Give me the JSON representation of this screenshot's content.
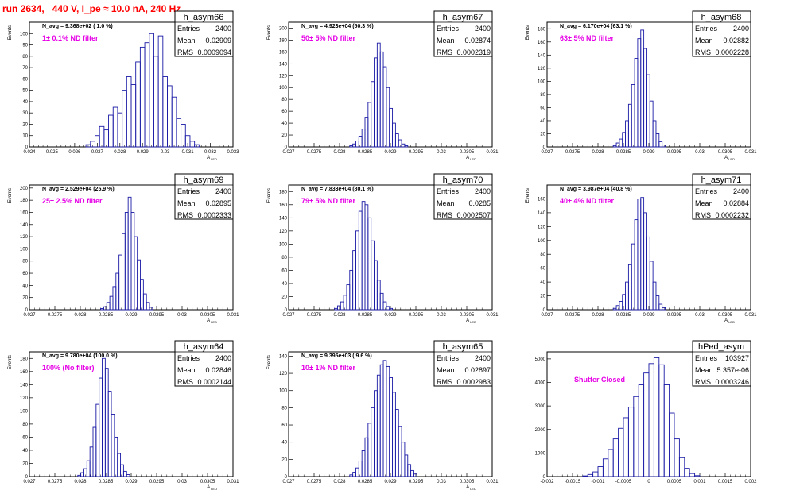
{
  "page": {
    "title": "run 2634,   440 V, I_pe ≈ 10.0 nA, 240 Hz"
  },
  "chart_data": [
    {
      "type": "histogram",
      "name": "h_asym66",
      "n_avg": "N_avg = 9.368e+02 ( 1.0 %)",
      "filter": "1± 0.1% ND filter",
      "ylabel": "Events",
      "xlabel": "A_{LED}",
      "xlim": [
        0.024,
        0.033
      ],
      "ylim": [
        0,
        110
      ],
      "xticks": [
        "0.024",
        "0.025",
        "0.026",
        "0.027",
        "0.028",
        "0.029",
        "0.03",
        "0.031",
        "0.032",
        "0.033"
      ],
      "yticks": [
        "0",
        "10",
        "20",
        "30",
        "40",
        "50",
        "60",
        "70",
        "80",
        "90",
        "100"
      ],
      "stats": {
        "entries": "2400",
        "mean": "0.02909",
        "rms": "0.0009094"
      },
      "bins": [
        [
          0.0265,
          0.0267,
          2
        ],
        [
          0.0267,
          0.0269,
          5
        ],
        [
          0.0269,
          0.0271,
          10
        ],
        [
          0.0271,
          0.0273,
          18
        ],
        [
          0.0273,
          0.0275,
          15
        ],
        [
          0.0275,
          0.0277,
          28
        ],
        [
          0.0277,
          0.0279,
          35
        ],
        [
          0.0279,
          0.0281,
          30
        ],
        [
          0.0281,
          0.0283,
          50
        ],
        [
          0.0283,
          0.0285,
          62
        ],
        [
          0.0285,
          0.0287,
          55
        ],
        [
          0.0287,
          0.0289,
          75
        ],
        [
          0.0289,
          0.0291,
          88
        ],
        [
          0.0291,
          0.0293,
          92
        ],
        [
          0.0293,
          0.0295,
          100
        ],
        [
          0.0295,
          0.0297,
          80
        ],
        [
          0.0297,
          0.0299,
          98
        ],
        [
          0.0299,
          0.0301,
          62
        ],
        [
          0.0301,
          0.0303,
          54
        ],
        [
          0.0303,
          0.0305,
          44
        ],
        [
          0.0305,
          0.0307,
          25
        ],
        [
          0.0307,
          0.0309,
          20
        ],
        [
          0.0309,
          0.0311,
          10
        ],
        [
          0.0311,
          0.0313,
          5
        ],
        [
          0.0313,
          0.0315,
          2
        ]
      ]
    },
    {
      "type": "histogram",
      "name": "h_asym67",
      "n_avg": "N_avg = 4.923e+04 (50.3 %)",
      "filter": "50± 5% ND filter",
      "ylabel": "Events",
      "xlabel": "A_{LED}",
      "xlim": [
        0.027,
        0.031
      ],
      "ylim": [
        0,
        210
      ],
      "xticks": [
        "0.027",
        "0.0275",
        "0.028",
        "0.0285",
        "0.029",
        "0.0295",
        "0.03",
        "0.0305",
        "0.031"
      ],
      "yticks": [
        "0",
        "20",
        "40",
        "60",
        "80",
        "100",
        "120",
        "140",
        "160",
        "180",
        "200"
      ],
      "stats": {
        "entries": "2400",
        "mean": "0.02874",
        "rms": "0.0002319"
      },
      "bins": [
        [
          0.0282,
          0.02826,
          2
        ],
        [
          0.02826,
          0.02832,
          5
        ],
        [
          0.02832,
          0.02838,
          10
        ],
        [
          0.02838,
          0.02844,
          18
        ],
        [
          0.02844,
          0.0285,
          30
        ],
        [
          0.0285,
          0.02856,
          50
        ],
        [
          0.02856,
          0.02862,
          75
        ],
        [
          0.02862,
          0.02868,
          110
        ],
        [
          0.02868,
          0.02874,
          150
        ],
        [
          0.02874,
          0.0288,
          175
        ],
        [
          0.0288,
          0.02886,
          160
        ],
        [
          0.02886,
          0.02892,
          135
        ],
        [
          0.02892,
          0.02898,
          100
        ],
        [
          0.02898,
          0.02904,
          65
        ],
        [
          0.02904,
          0.0291,
          40
        ],
        [
          0.0291,
          0.02916,
          22
        ],
        [
          0.02916,
          0.02922,
          12
        ],
        [
          0.02922,
          0.02928,
          5
        ],
        [
          0.02928,
          0.02934,
          2
        ]
      ]
    },
    {
      "type": "histogram",
      "name": "h_asym68",
      "n_avg": "N_avg = 6.170e+04 (63.1 %)",
      "filter": "63± 5% ND filter",
      "ylabel": "Events",
      "xlabel": "A_{LED}",
      "xlim": [
        0.027,
        0.031
      ],
      "ylim": [
        0,
        190
      ],
      "xticks": [
        "0.027",
        "0.0275",
        "0.028",
        "0.0285",
        "0.029",
        "0.0295",
        "0.03",
        "0.0305",
        "0.031"
      ],
      "yticks": [
        "0",
        "20",
        "40",
        "60",
        "80",
        "100",
        "120",
        "140",
        "160",
        "180"
      ],
      "stats": {
        "entries": "2400",
        "mean": "0.02882",
        "rms": "0.0002228"
      },
      "bins": [
        [
          0.0283,
          0.02836,
          2
        ],
        [
          0.02836,
          0.02842,
          6
        ],
        [
          0.02842,
          0.02848,
          12
        ],
        [
          0.02848,
          0.02854,
          22
        ],
        [
          0.02854,
          0.0286,
          40
        ],
        [
          0.0286,
          0.02866,
          65
        ],
        [
          0.02866,
          0.02872,
          95
        ],
        [
          0.02872,
          0.02878,
          135
        ],
        [
          0.02878,
          0.02884,
          165
        ],
        [
          0.02884,
          0.0289,
          178
        ],
        [
          0.0289,
          0.02896,
          150
        ],
        [
          0.02896,
          0.02902,
          110
        ],
        [
          0.02902,
          0.02908,
          70
        ],
        [
          0.02908,
          0.02914,
          40
        ],
        [
          0.02914,
          0.0292,
          20
        ],
        [
          0.0292,
          0.02926,
          8
        ],
        [
          0.02926,
          0.02932,
          3
        ]
      ]
    },
    {
      "type": "histogram",
      "name": "h_asym69",
      "n_avg": "N_avg = 2.529e+04 (25.9 %)",
      "filter": "25± 2.5% ND filter",
      "ylabel": "Events",
      "xlabel": "A_{LED}",
      "xlim": [
        0.027,
        0.031
      ],
      "ylim": [
        0,
        205
      ],
      "xticks": [
        "0.027",
        "0.0275",
        "0.028",
        "0.0285",
        "0.029",
        "0.0295",
        "0.03",
        "0.0305",
        "0.031"
      ],
      "yticks": [
        "0",
        "20",
        "40",
        "60",
        "80",
        "100",
        "120",
        "140",
        "160",
        "180",
        "200"
      ],
      "stats": {
        "entries": "2400",
        "mean": "0.02895",
        "rms": "0.0002333"
      },
      "bins": [
        [
          0.0284,
          0.02846,
          2
        ],
        [
          0.02846,
          0.02852,
          5
        ],
        [
          0.02852,
          0.02858,
          12
        ],
        [
          0.02858,
          0.02864,
          22
        ],
        [
          0.02864,
          0.0287,
          38
        ],
        [
          0.0287,
          0.02876,
          60
        ],
        [
          0.02876,
          0.02882,
          90
        ],
        [
          0.02882,
          0.02888,
          125
        ],
        [
          0.02888,
          0.02894,
          160
        ],
        [
          0.02894,
          0.029,
          185
        ],
        [
          0.029,
          0.02906,
          160
        ],
        [
          0.02906,
          0.02912,
          120
        ],
        [
          0.02912,
          0.02918,
          82
        ],
        [
          0.02918,
          0.02924,
          50
        ],
        [
          0.02924,
          0.0293,
          26
        ],
        [
          0.0293,
          0.02936,
          12
        ],
        [
          0.02936,
          0.02942,
          4
        ]
      ]
    },
    {
      "type": "histogram",
      "name": "h_asym70",
      "n_avg": "N_avg = 7.833e+04 (80.1 %)",
      "filter": "79± 5% ND filter",
      "ylabel": "Events",
      "xlabel": "A_{LED}",
      "xlim": [
        0.027,
        0.031
      ],
      "ylim": [
        0,
        190
      ],
      "xticks": [
        "0.027",
        "0.0275",
        "0.028",
        "0.0285",
        "0.029",
        "0.0295",
        "0.03",
        "0.0305",
        "0.031"
      ],
      "yticks": [
        "0",
        "20",
        "40",
        "60",
        "80",
        "100",
        "120",
        "140",
        "160",
        "180"
      ],
      "stats": {
        "entries": "2400",
        "mean": "0.0285",
        "rms": "0.0002507"
      },
      "bins": [
        [
          0.0279,
          0.02796,
          2
        ],
        [
          0.02796,
          0.02802,
          6
        ],
        [
          0.02802,
          0.02808,
          12
        ],
        [
          0.02808,
          0.02814,
          22
        ],
        [
          0.02814,
          0.0282,
          38
        ],
        [
          0.0282,
          0.02826,
          60
        ],
        [
          0.02826,
          0.02832,
          90
        ],
        [
          0.02832,
          0.02838,
          120
        ],
        [
          0.02838,
          0.02844,
          150
        ],
        [
          0.02844,
          0.0285,
          165
        ],
        [
          0.0285,
          0.02856,
          160
        ],
        [
          0.02856,
          0.02862,
          140
        ],
        [
          0.02862,
          0.02868,
          105
        ],
        [
          0.02868,
          0.02874,
          75
        ],
        [
          0.02874,
          0.0288,
          45
        ],
        [
          0.0288,
          0.02886,
          25
        ],
        [
          0.02886,
          0.02892,
          12
        ],
        [
          0.02892,
          0.02898,
          5
        ],
        [
          0.02898,
          0.02904,
          2
        ]
      ]
    },
    {
      "type": "histogram",
      "name": "h_asym71",
      "n_avg": "N_avg = 3.987e+04 (40.8 %)",
      "filter": "40± 4% ND filter",
      "ylabel": "Events",
      "xlabel": "A_{LED}",
      "xlim": [
        0.027,
        0.031
      ],
      "ylim": [
        0,
        180
      ],
      "xticks": [
        "0.027",
        "0.0275",
        "0.028",
        "0.0285",
        "0.029",
        "0.0295",
        "0.03",
        "0.0305",
        "0.031"
      ],
      "yticks": [
        "0",
        "20",
        "40",
        "60",
        "80",
        "100",
        "120",
        "140",
        "160"
      ],
      "stats": {
        "entries": "2400",
        "mean": "0.02884",
        "rms": "0.0002232"
      },
      "bins": [
        [
          0.0283,
          0.02836,
          2
        ],
        [
          0.02836,
          0.02842,
          6
        ],
        [
          0.02842,
          0.02848,
          12
        ],
        [
          0.02848,
          0.02854,
          22
        ],
        [
          0.02854,
          0.0286,
          40
        ],
        [
          0.0286,
          0.02866,
          65
        ],
        [
          0.02866,
          0.02872,
          95
        ],
        [
          0.02872,
          0.02878,
          130
        ],
        [
          0.02878,
          0.02884,
          160
        ],
        [
          0.02884,
          0.0289,
          162
        ],
        [
          0.0289,
          0.02896,
          140
        ],
        [
          0.02896,
          0.02902,
          105
        ],
        [
          0.02902,
          0.02908,
          70
        ],
        [
          0.02908,
          0.02914,
          40
        ],
        [
          0.02914,
          0.0292,
          20
        ],
        [
          0.0292,
          0.02926,
          8
        ],
        [
          0.02926,
          0.02932,
          3
        ]
      ]
    },
    {
      "type": "histogram",
      "name": "h_asym64",
      "n_avg": "N_avg = 9.780e+04 (100.0 %)",
      "filter": "100% (No filter)",
      "ylabel": "Events",
      "xlabel": "A_{LED}",
      "xlim": [
        0.027,
        0.031
      ],
      "ylim": [
        0,
        190
      ],
      "xticks": [
        "0.027",
        "0.0275",
        "0.028",
        "0.0285",
        "0.029",
        "0.0295",
        "0.03",
        "0.0305",
        "0.031"
      ],
      "yticks": [
        "0",
        "20",
        "40",
        "60",
        "80",
        "100",
        "120",
        "140",
        "160",
        "180"
      ],
      "stats": {
        "entries": "2400",
        "mean": "0.02846",
        "rms": "0.0002144"
      },
      "bins": [
        [
          0.02795,
          0.02801,
          2
        ],
        [
          0.02801,
          0.02807,
          6
        ],
        [
          0.02807,
          0.02813,
          12
        ],
        [
          0.02813,
          0.02819,
          24
        ],
        [
          0.02819,
          0.02825,
          45
        ],
        [
          0.02825,
          0.02831,
          75
        ],
        [
          0.02831,
          0.02837,
          110
        ],
        [
          0.02837,
          0.02843,
          150
        ],
        [
          0.02843,
          0.02849,
          180
        ],
        [
          0.02849,
          0.02855,
          165
        ],
        [
          0.02855,
          0.02861,
          130
        ],
        [
          0.02861,
          0.02867,
          95
        ],
        [
          0.02867,
          0.02873,
          60
        ],
        [
          0.02873,
          0.02879,
          35
        ],
        [
          0.02879,
          0.02885,
          18
        ],
        [
          0.02885,
          0.02891,
          8
        ],
        [
          0.02891,
          0.02897,
          3
        ]
      ]
    },
    {
      "type": "histogram",
      "name": "h_asym65",
      "n_avg": "N_avg = 9.395e+03 ( 9.6 %)",
      "filter": "10± 1% ND filter",
      "ylabel": "Events",
      "xlabel": "A_{LED}",
      "xlim": [
        0.027,
        0.031
      ],
      "ylim": [
        0,
        145
      ],
      "xticks": [
        "0.027",
        "0.0275",
        "0.028",
        "0.0285",
        "0.029",
        "0.0295",
        "0.03",
        "0.0305",
        "0.031"
      ],
      "yticks": [
        "0",
        "20",
        "40",
        "60",
        "80",
        "100",
        "120",
        "140"
      ],
      "stats": {
        "entries": "2400",
        "mean": "0.02897",
        "rms": "0.0002983"
      },
      "bins": [
        [
          0.0282,
          0.02826,
          2
        ],
        [
          0.02826,
          0.02832,
          5
        ],
        [
          0.02832,
          0.02838,
          10
        ],
        [
          0.02838,
          0.02844,
          18
        ],
        [
          0.02844,
          0.0285,
          30
        ],
        [
          0.0285,
          0.02856,
          45
        ],
        [
          0.02856,
          0.02862,
          62
        ],
        [
          0.02862,
          0.02868,
          80
        ],
        [
          0.02868,
          0.02874,
          100
        ],
        [
          0.02874,
          0.0288,
          118
        ],
        [
          0.0288,
          0.02886,
          130
        ],
        [
          0.02886,
          0.02892,
          135
        ],
        [
          0.02892,
          0.02898,
          128
        ],
        [
          0.02898,
          0.02904,
          115
        ],
        [
          0.02904,
          0.0291,
          98
        ],
        [
          0.0291,
          0.02916,
          78
        ],
        [
          0.02916,
          0.02922,
          58
        ],
        [
          0.02922,
          0.02928,
          40
        ],
        [
          0.02928,
          0.02934,
          25
        ],
        [
          0.02934,
          0.0294,
          14
        ],
        [
          0.0294,
          0.02946,
          7
        ],
        [
          0.02946,
          0.02952,
          3
        ]
      ]
    },
    {
      "type": "histogram",
      "name": "hPed_asym",
      "n_avg": "",
      "filter": "Shutter Closed",
      "ylabel": "",
      "xlabel": "",
      "xlim": [
        -0.002,
        0.002
      ],
      "ylim": [
        0,
        5300
      ],
      "xticks": [
        "-0.002",
        "-0.0015",
        "-0.001",
        "-0.0005",
        "0",
        "0.0005",
        "0.001",
        "0.0015",
        "0.002"
      ],
      "yticks": [
        "0",
        "1000",
        "2000",
        "3000",
        "4000",
        "5000"
      ],
      "stats": {
        "entries": "103927",
        "mean": "5.357e-06",
        "rms": "0.0003246"
      },
      "bins": [
        [
          -0.0013,
          -0.0012,
          30
        ],
        [
          -0.0012,
          -0.0011,
          90
        ],
        [
          -0.0011,
          -0.001,
          200
        ],
        [
          -0.001,
          -0.0009,
          420
        ],
        [
          -0.0009,
          -0.0008,
          750
        ],
        [
          -0.0008,
          -0.0007,
          1150
        ],
        [
          -0.0007,
          -0.0006,
          1600
        ],
        [
          -0.0006,
          -0.0005,
          2050
        ],
        [
          -0.0005,
          -0.0004,
          2500
        ],
        [
          -0.0004,
          -0.0003,
          2950
        ],
        [
          -0.0003,
          -0.0002,
          3400
        ],
        [
          -0.0002,
          -0.0001,
          3900
        ],
        [
          -0.0001,
          0.0,
          4400
        ],
        [
          0.0,
          0.0001,
          4800
        ],
        [
          0.0001,
          0.0002,
          5050
        ],
        [
          0.0002,
          0.0003,
          4750
        ],
        [
          0.0003,
          0.0004,
          3900
        ],
        [
          0.0004,
          0.0005,
          2700
        ],
        [
          0.0005,
          0.0006,
          1600
        ],
        [
          0.0006,
          0.0007,
          800
        ],
        [
          0.0007,
          0.0008,
          350
        ],
        [
          0.0008,
          0.0009,
          130
        ],
        [
          0.0009,
          0.001,
          40
        ]
      ]
    }
  ]
}
